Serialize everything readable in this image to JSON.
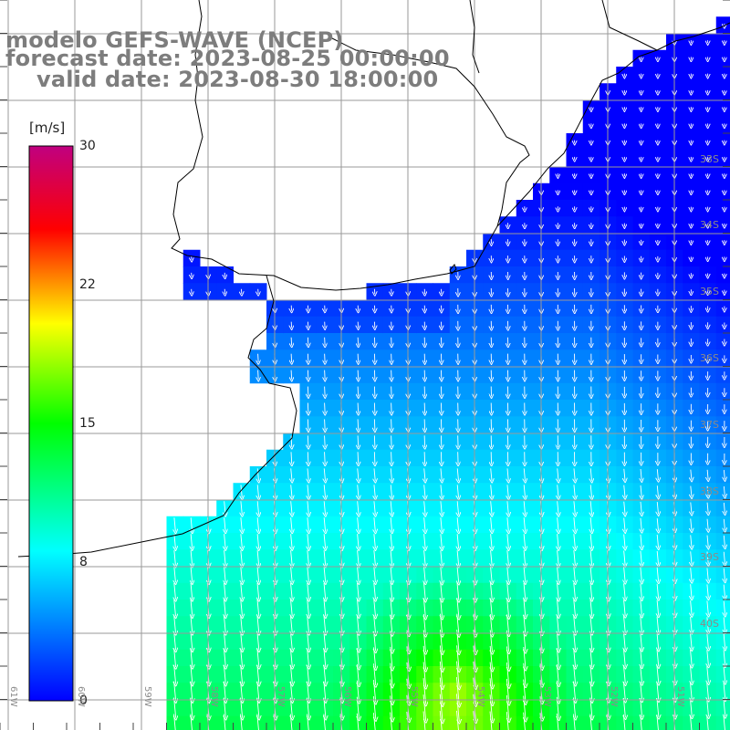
{
  "title": {
    "line1": "modelo GEFS-WAVE (NCEP)",
    "line2": "forecast date: 2023-08-25 00:00:00",
    "line3": "valid date: 2023-08-30 18:00:00"
  },
  "colorbar": {
    "unit": "[m/s]",
    "ticks": [
      "0",
      "8",
      "15",
      "22",
      "30"
    ],
    "colors": [
      "#0000ff",
      "#00ffff",
      "#00ff00",
      "#ffff00",
      "#ff0000",
      "#c00080"
    ]
  },
  "grid": {
    "lat_labels": [
      "33S",
      "34S",
      "35S",
      "36S",
      "37S",
      "38S",
      "39S",
      "40S"
    ],
    "lon_labels": [
      "61W",
      "60W",
      "59W",
      "58W",
      "57W",
      "56W",
      "55W",
      "54W",
      "53W",
      "52W",
      "51W"
    ]
  }
}
